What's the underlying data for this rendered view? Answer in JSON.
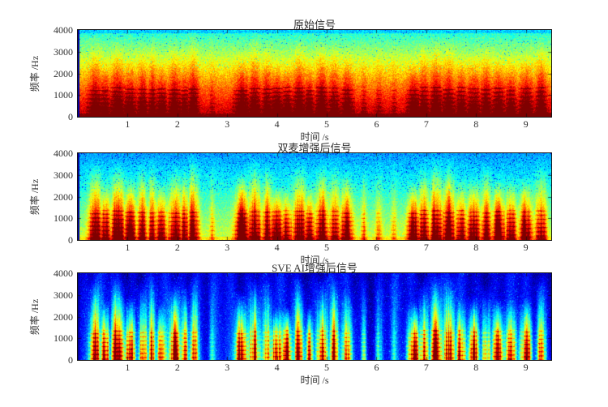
{
  "figure": {
    "background": "#ffffff",
    "text_color": "#2e2e2e"
  },
  "chart_data": {
    "type": "heatmap",
    "subtype": "spectrogram",
    "colormap": "jet",
    "xlabel": "时间 /s",
    "ylabel": "频率 /Hz",
    "xlim": [
      0,
      9.51
    ],
    "ylim": [
      0,
      4000
    ],
    "xticks": [
      1,
      2,
      3,
      4,
      5,
      6,
      7,
      8,
      9
    ],
    "yticks": [
      0,
      1000,
      2000,
      3000,
      4000
    ],
    "grid": false,
    "legend": null,
    "speech_segments_s": [
      [
        0.25,
        2.45
      ],
      [
        3.2,
        5.55
      ],
      [
        6.6,
        9.45
      ]
    ],
    "syllables": [
      [
        0.35,
        0.18,
        1.0
      ],
      [
        0.55,
        0.15,
        0.85
      ],
      [
        0.8,
        0.2,
        1.0
      ],
      [
        1.05,
        0.18,
        0.9
      ],
      [
        1.3,
        0.15,
        0.8
      ],
      [
        1.5,
        0.12,
        0.85
      ],
      [
        1.68,
        0.15,
        0.9
      ],
      [
        1.95,
        0.18,
        1.0
      ],
      [
        2.15,
        0.12,
        0.8
      ],
      [
        2.32,
        0.15,
        0.9
      ],
      [
        2.7,
        0.08,
        0.3
      ],
      [
        3.3,
        0.2,
        1.0
      ],
      [
        3.55,
        0.18,
        0.95
      ],
      [
        3.8,
        0.15,
        0.85
      ],
      [
        4.0,
        0.18,
        1.0
      ],
      [
        4.2,
        0.15,
        0.9
      ],
      [
        4.45,
        0.18,
        0.95
      ],
      [
        4.65,
        0.15,
        0.8
      ],
      [
        4.9,
        0.18,
        1.0
      ],
      [
        5.15,
        0.15,
        0.85
      ],
      [
        5.4,
        0.18,
        0.9
      ],
      [
        5.75,
        0.08,
        0.4
      ],
      [
        6.05,
        0.1,
        0.35
      ],
      [
        6.35,
        0.08,
        0.3
      ],
      [
        6.75,
        0.18,
        1.0
      ],
      [
        6.95,
        0.15,
        0.85
      ],
      [
        7.2,
        0.18,
        0.95
      ],
      [
        7.45,
        0.18,
        1.0
      ],
      [
        7.7,
        0.15,
        0.85
      ],
      [
        7.95,
        0.18,
        0.95
      ],
      [
        8.2,
        0.15,
        0.9
      ],
      [
        8.45,
        0.18,
        1.0
      ],
      [
        8.7,
        0.15,
        0.85
      ],
      [
        9.0,
        0.18,
        0.95
      ],
      [
        9.3,
        0.15,
        0.9
      ]
    ],
    "plots": [
      {
        "title": "原始信号",
        "seed": 101,
        "style": {
          "base_bottom": 0.95,
          "base_slope": 0.56,
          "top_band_start": 0.965,
          "top_band_value": 0.33,
          "jitter": 0.065,
          "speckle_prob": 0.02,
          "speckle_delta": -0.22,
          "speckle_min_fn": 0.5,
          "speech_flat": 0.02,
          "speech_low": 0.13,
          "core": 0.1,
          "core_fn": 0.3,
          "striation": 0.3,
          "col_tex_min": 0.7,
          "col_tex_rng": 0.5,
          "stripes": 0,
          "bottom_boost": 0.08
        }
      },
      {
        "title": "双麦增强后信号",
        "seed": 202,
        "style": {
          "base_bottom": 0.58,
          "base_slope": 0.3,
          "top_band_start": 0,
          "top_band_value": 0,
          "jitter": 0.06,
          "speckle_prob": 0.05,
          "speckle_delta": -0.2,
          "speckle_min_fn": 0.55,
          "speech_flat": 0.05,
          "speech_low": 0.4,
          "core": 0.18,
          "core_fn": 0.4,
          "striation": 0.3,
          "col_tex_min": 0.55,
          "col_tex_rng": 0.7,
          "stripes": 0,
          "bottom_boost": 0.06
        }
      },
      {
        "title": "SVE AI增强后信号",
        "seed": 303,
        "style": {
          "base_bottom": 0.15,
          "base_slope": 0.06,
          "top_band_start": 0,
          "top_band_value": 0,
          "jitter": 0.05,
          "speckle_prob": 0.03,
          "speckle_delta": 0.12,
          "speckle_min_fn": 0,
          "speech_flat": 0.3,
          "speech_low": 0.25,
          "core": 0.45,
          "core_fn": 0.75,
          "striation": 0.3,
          "col_tex_min": 0.4,
          "col_tex_rng": 0.85,
          "stripes": 0.07,
          "bottom_boost": 0
        }
      }
    ]
  }
}
